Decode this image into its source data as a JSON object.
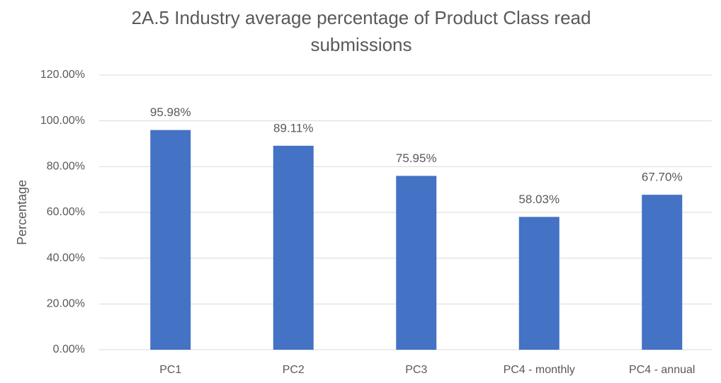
{
  "chart_data": {
    "type": "bar",
    "title": "2A.5 Industry average percentage of Product Class read submissions",
    "y_label": "Percentage",
    "categories": [
      "PC1",
      "PC2",
      "PC3",
      "PC4 - monthly",
      "PC4 - annual"
    ],
    "values": [
      95.98,
      89.11,
      75.95,
      58.03,
      67.7
    ],
    "value_labels": [
      "95.98%",
      "89.11%",
      "75.95%",
      "58.03%",
      "67.70%"
    ],
    "color": "#4472c4",
    "ylim": [
      0,
      120
    ],
    "yticks": [
      {
        "value": 0,
        "label": "0.00%"
      },
      {
        "value": 20,
        "label": "20.00%"
      },
      {
        "value": 40,
        "label": "40.00%"
      },
      {
        "value": 60,
        "label": "60.00%"
      },
      {
        "value": 80,
        "label": "80.00%"
      },
      {
        "value": 100,
        "label": "100.00%"
      },
      {
        "value": 120,
        "label": "120.00%"
      }
    ],
    "grid": true
  }
}
